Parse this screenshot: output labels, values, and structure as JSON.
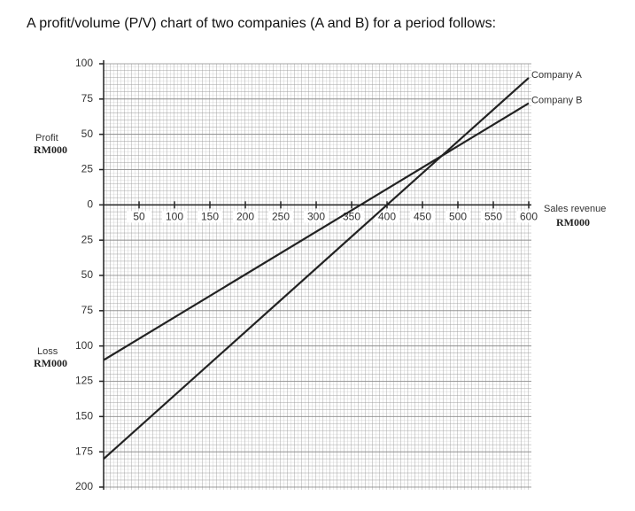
{
  "chart_data": {
    "type": "line",
    "title": "A profit/volume (P/V) chart of two companies (A and B) for a period follows:",
    "profit_label": "Profit",
    "profit_unit": "RM000",
    "loss_label": "Loss",
    "loss_unit": "RM000",
    "x_label": "Sales revenue",
    "x_unit": "RM000",
    "x": [
      0,
      600
    ],
    "series": [
      {
        "name": "Company A",
        "color": "#222222",
        "values": [
          -180,
          90
        ]
      },
      {
        "name": "Company B",
        "color": "#222222",
        "values": [
          -110,
          72
        ]
      }
    ],
    "xlim": [
      0,
      600
    ],
    "xticks": [
      50,
      100,
      150,
      200,
      250,
      300,
      350,
      400,
      450,
      500,
      550,
      600
    ],
    "ylim": [
      -200,
      100
    ],
    "yticks": [
      100,
      75,
      50,
      25,
      0,
      {
        "value": -25,
        "label": "25"
      },
      {
        "value": -50,
        "label": "50"
      },
      {
        "value": -75,
        "label": "75"
      },
      {
        "value": -100,
        "label": "100"
      },
      {
        "value": -125,
        "label": "125"
      },
      {
        "value": -150,
        "label": "150"
      },
      {
        "value": -175,
        "label": "175"
      },
      {
        "value": -200,
        "label": "200"
      }
    ],
    "grid": true
  }
}
